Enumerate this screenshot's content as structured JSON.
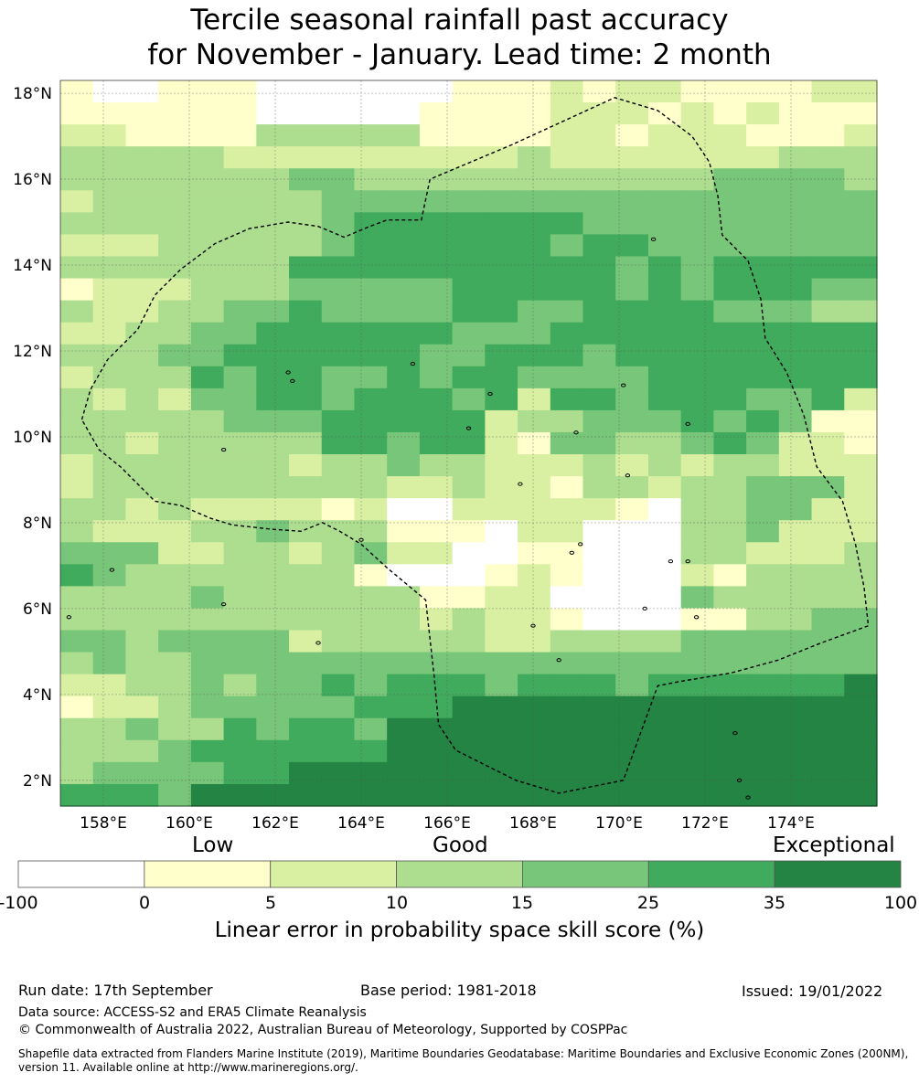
{
  "title_line1": "Tercile seasonal rainfall past accuracy",
  "title_line2": "for November - January. Lead time: 2 month",
  "map": {
    "lat_labels": [
      "18°N",
      "16°N",
      "14°N",
      "12°N",
      "10°N",
      "8°N",
      "6°N",
      "4°N",
      "2°N"
    ],
    "lon_labels": [
      "158°E",
      "160°E",
      "162°E",
      "164°E",
      "166°E",
      "168°E",
      "170°E",
      "172°E",
      "174°E"
    ],
    "lat_values": [
      18,
      16,
      14,
      12,
      10,
      8,
      6,
      4,
      2
    ],
    "lon_values": [
      158,
      160,
      162,
      164,
      166,
      168,
      170,
      172,
      174
    ],
    "extent": {
      "lon_min": 157.0,
      "lon_max": 176.0,
      "lat_min": 1.4,
      "lat_max": 18.3
    },
    "grid_rows_top_to_bottom": [
      "1001110000001112122111122",
      "1111110000011112221212111",
      "2211113333311112212221112",
      "3333322222222232222222333",
      "3333333443333333333344443",
      "2333333344444444444444444",
      "3333333345555555444444444",
      "2223333345555554554444444",
      "3333333555555555545455555",
      "1222333444445555545455544",
      "3223344544445544555544433",
      "2233445555554445555555555",
      "3334455555544555455555555",
      "2333545544545544445555555",
      "3232445545554525545554452",
      "3333344455555233444545411",
      "3323333355455214433454221",
      "2333333233433222323233222",
      "2333333333223221332334442",
      "3323222212002222210334422",
      "3222334333111022000334222",
      "4442233234220011000332223",
      "5433333331000121000213333",
      "3333433333311220000433333",
      "3333333333323221000113344",
      "4434444233333223333444444",
      "3433444444444444444444444",
      "2233434454555455545555556",
      "1223444445556666666666666",
      "3343354554666666666666666",
      "3334555555666666666666666",
      "3444455666666666666666666",
      "5554666666666666666666666"
    ],
    "palette": [
      "#ffffff",
      "#ffffcc",
      "#d9f0a3",
      "#addd8e",
      "#78c679",
      "#41ab5d",
      "#238443"
    ],
    "eez_boundary": [
      [
        157.5,
        10.4
      ],
      [
        157.7,
        11.1
      ],
      [
        158.1,
        11.8
      ],
      [
        158.8,
        12.5
      ],
      [
        159.2,
        13.3
      ],
      [
        159.8,
        13.9
      ],
      [
        160.6,
        14.5
      ],
      [
        161.4,
        14.85
      ],
      [
        162.3,
        15.0
      ],
      [
        163.0,
        14.9
      ],
      [
        163.6,
        14.65
      ],
      [
        164.2,
        14.9
      ],
      [
        164.6,
        15.05
      ],
      [
        165.4,
        15.05
      ],
      [
        165.6,
        16.0
      ],
      [
        167.5,
        16.8
      ],
      [
        169.9,
        17.9
      ],
      [
        170.9,
        17.6
      ],
      [
        171.7,
        17.0
      ],
      [
        172.1,
        16.4
      ],
      [
        172.3,
        15.6
      ],
      [
        172.4,
        14.7
      ],
      [
        173.0,
        14.1
      ],
      [
        173.3,
        13.2
      ],
      [
        173.4,
        12.3
      ],
      [
        173.9,
        11.5
      ],
      [
        174.3,
        10.5
      ],
      [
        174.6,
        9.3
      ],
      [
        175.2,
        8.5
      ],
      [
        175.5,
        7.5
      ],
      [
        175.7,
        6.5
      ],
      [
        175.8,
        5.6
      ],
      [
        174.7,
        5.2
      ],
      [
        173.7,
        4.8
      ],
      [
        172.6,
        4.5
      ],
      [
        171.4,
        4.3
      ],
      [
        170.9,
        4.2
      ],
      [
        170.1,
        2.0
      ],
      [
        168.6,
        1.7
      ],
      [
        167.6,
        2.0
      ],
      [
        166.2,
        2.7
      ],
      [
        165.8,
        3.3
      ],
      [
        165.7,
        4.4
      ],
      [
        165.5,
        6.2
      ],
      [
        164.6,
        6.95
      ],
      [
        164.0,
        7.5
      ],
      [
        163.5,
        7.8
      ],
      [
        163.1,
        8.0
      ],
      [
        162.6,
        7.8
      ],
      [
        161.9,
        7.85
      ],
      [
        161.0,
        7.95
      ],
      [
        160.5,
        8.1
      ],
      [
        159.8,
        8.4
      ],
      [
        159.2,
        8.5
      ],
      [
        158.4,
        9.3
      ],
      [
        157.9,
        9.7
      ],
      [
        157.5,
        10.4
      ]
    ],
    "islands": [
      [
        158.2,
        6.9
      ],
      [
        160.8,
        9.7
      ],
      [
        162.3,
        11.5
      ],
      [
        162.4,
        11.3
      ],
      [
        165.2,
        11.7
      ],
      [
        166.5,
        10.2
      ],
      [
        167.0,
        11.0
      ],
      [
        167.7,
        8.9
      ],
      [
        169.0,
        10.1
      ],
      [
        170.2,
        9.1
      ],
      [
        170.1,
        11.2
      ],
      [
        171.6,
        10.3
      ],
      [
        171.2,
        7.1
      ],
      [
        171.6,
        7.1
      ],
      [
        168.9,
        7.3
      ],
      [
        169.1,
        7.5
      ],
      [
        172.7,
        3.1
      ],
      [
        172.8,
        2.0
      ],
      [
        173.0,
        1.6
      ],
      [
        163.0,
        5.2
      ],
      [
        160.8,
        6.1
      ],
      [
        157.2,
        5.8
      ],
      [
        170.6,
        6.0
      ],
      [
        171.8,
        5.8
      ],
      [
        170.8,
        14.6
      ],
      [
        168.6,
        4.8
      ],
      [
        168.0,
        5.6
      ],
      [
        164.0,
        7.6
      ]
    ]
  },
  "colorbar": {
    "categories": [
      "Low",
      "Good",
      "Exceptional"
    ],
    "ticks": [
      "-100",
      "0",
      "5",
      "10",
      "15",
      "25",
      "35",
      "100"
    ],
    "colors": [
      "#ffffff",
      "#ffffcc",
      "#d9f0a3",
      "#addd8e",
      "#78c679",
      "#41ab5d",
      "#238443"
    ],
    "label": "Linear error in probability space skill score (%)"
  },
  "footer": {
    "run_date": "Run date: 17th September",
    "base_period": "Base period: 1981-2018",
    "issued": "Issued: 19/01/2022",
    "data_source": "Data source: ACCESS-S2 and ERA5 Climate Reanalysis",
    "copyright": "© Commonwealth of Australia 2022, Australian Bureau of Meteorology, Supported by COSPPac",
    "shapefile_line1": "Shapefile data extracted from Flanders Marine Institute (2019), Maritime Boundaries Geodatabase: Maritime Boundaries and Exclusive Economic Zones (200NM),",
    "shapefile_line2": "version 11. Available online at http://www.marineregions.org/."
  }
}
